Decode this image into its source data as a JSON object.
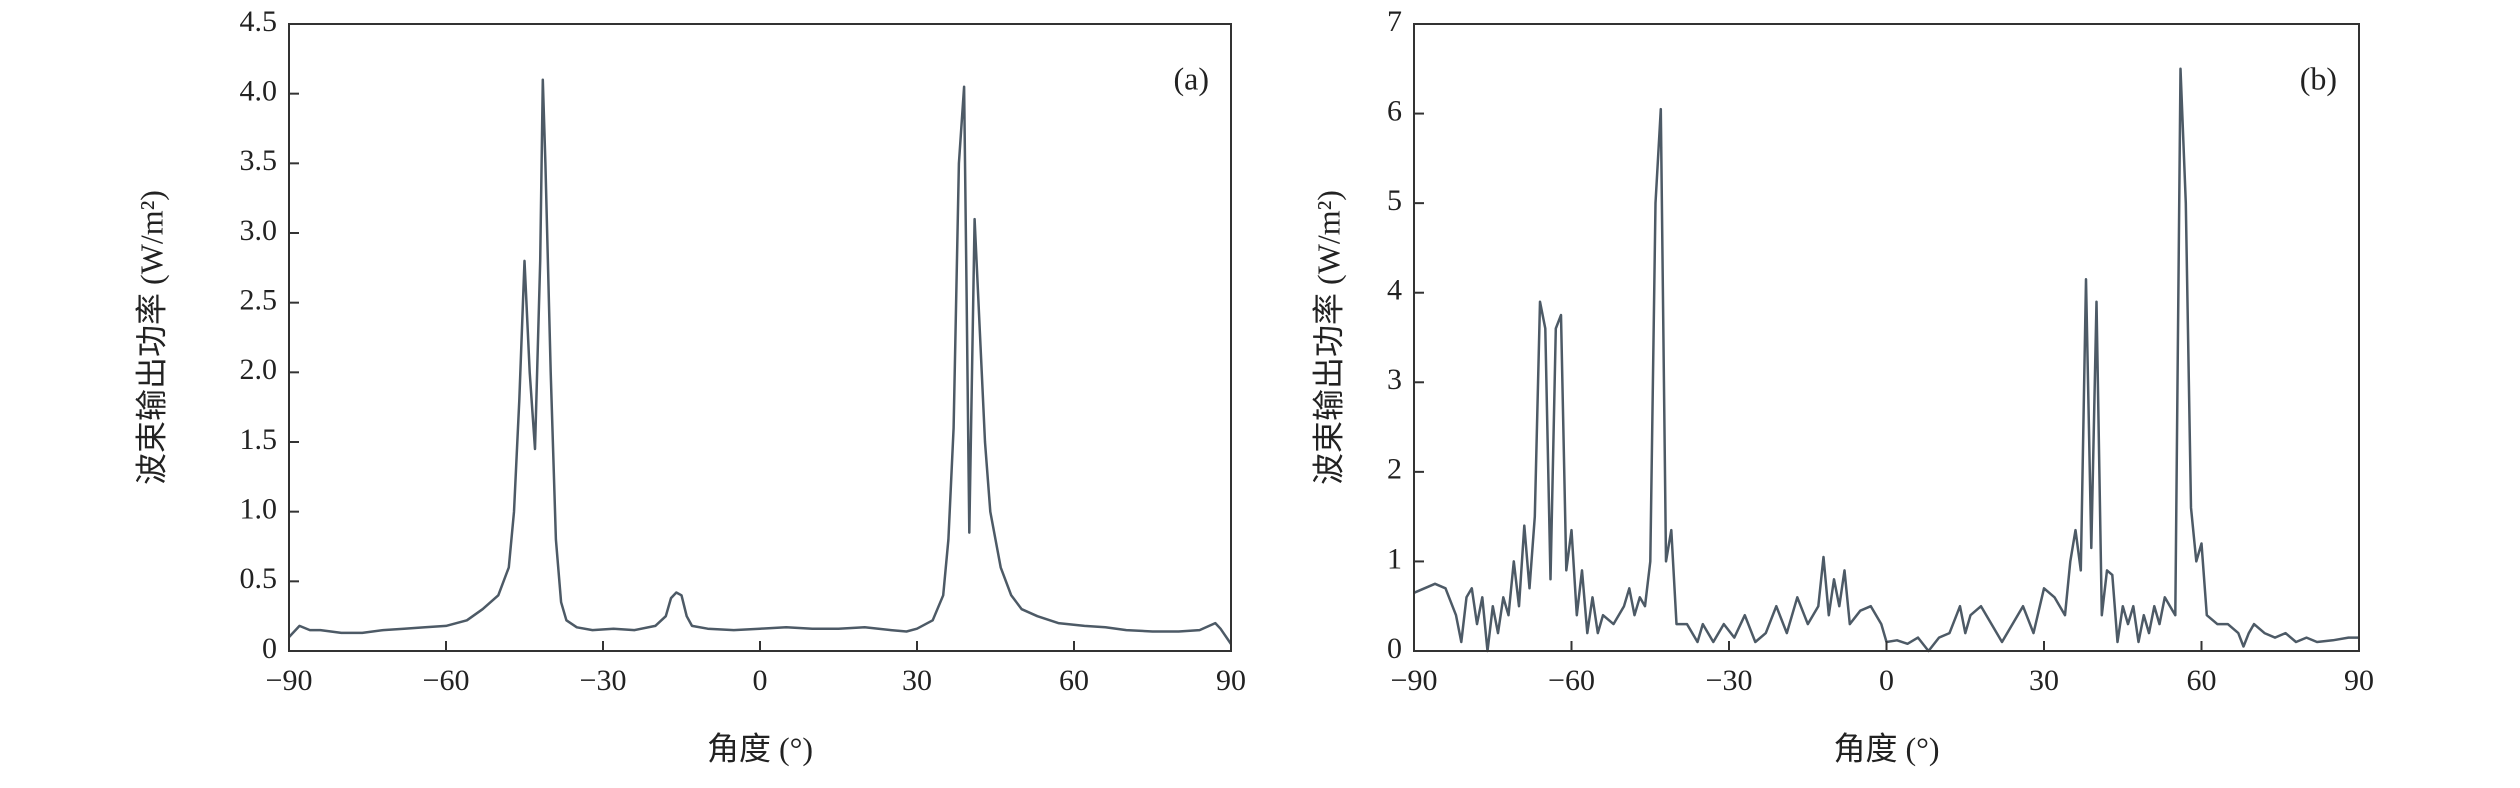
{
  "chart_data": [
    {
      "type": "line",
      "annotation": "(a)",
      "xlabel": "角度 (°)",
      "ylabel": "波束输出功率 (W/m²)",
      "color": "#4d5a66",
      "xlim": [
        -90,
        90
      ],
      "xticks": [
        {
          "value": -90,
          "label": "−90"
        },
        {
          "value": -60,
          "label": "−60"
        },
        {
          "value": -30,
          "label": "−30"
        },
        0,
        30,
        60,
        90
      ],
      "ylim": [
        0,
        4.5
      ],
      "yticks": [
        0,
        0.5,
        {
          "value": 1,
          "label": "1.0"
        },
        1.5,
        {
          "value": 2,
          "label": "2.0"
        },
        2.5,
        {
          "value": 3,
          "label": "3.0"
        },
        3.5,
        {
          "value": 4,
          "label": "4.0"
        },
        4.5
      ],
      "x": [
        -90,
        -88,
        -86,
        -84,
        -82,
        -80,
        -76,
        -72,
        -68,
        -64,
        -60,
        -56,
        -53,
        -50,
        -48,
        -47,
        -46,
        -45,
        -44,
        -43,
        -42,
        -41.5,
        -41,
        -40,
        -39,
        -38,
        -37,
        -35,
        -32,
        -28,
        -24,
        -20,
        -18,
        -17,
        -16,
        -15,
        -14,
        -13,
        -10,
        -5,
        0,
        5,
        10,
        15,
        20,
        25,
        28,
        30,
        33,
        35,
        36,
        37,
        38,
        39,
        39.5,
        40,
        41,
        42,
        43,
        44,
        46,
        48,
        50,
        53,
        57,
        62,
        66,
        70,
        75,
        80,
        84,
        87,
        88,
        90
      ],
      "values": [
        0.1,
        0.18,
        0.15,
        0.15,
        0.14,
        0.13,
        0.13,
        0.15,
        0.16,
        0.17,
        0.18,
        0.22,
        0.3,
        0.4,
        0.6,
        1.0,
        1.8,
        2.8,
        2.0,
        1.45,
        2.8,
        4.1,
        3.5,
        2.0,
        0.8,
        0.35,
        0.22,
        0.17,
        0.15,
        0.16,
        0.15,
        0.18,
        0.25,
        0.38,
        0.42,
        0.4,
        0.25,
        0.18,
        0.16,
        0.15,
        0.16,
        0.17,
        0.16,
        0.16,
        0.17,
        0.15,
        0.14,
        0.16,
        0.22,
        0.4,
        0.8,
        1.6,
        3.5,
        4.05,
        2.5,
        0.85,
        3.1,
        2.3,
        1.5,
        1.0,
        0.6,
        0.4,
        0.3,
        0.25,
        0.2,
        0.18,
        0.17,
        0.15,
        0.14,
        0.14,
        0.15,
        0.2,
        0.16,
        0.05
      ]
    },
    {
      "type": "line",
      "annotation": "(b)",
      "xlabel": "角度 (°)",
      "ylabel": "波束输出功率 (W/m²)",
      "color": "#4d5a66",
      "xlim": [
        -90,
        90
      ],
      "xticks": [
        {
          "value": -90,
          "label": "−90"
        },
        {
          "value": -60,
          "label": "−60"
        },
        {
          "value": -30,
          "label": "−30"
        },
        0,
        30,
        60,
        90
      ],
      "ylim": [
        0,
        7
      ],
      "yticks": [
        0,
        1,
        2,
        3,
        4,
        5,
        6,
        7
      ],
      "x": [
        -90,
        -88,
        -86,
        -84,
        -82,
        -81,
        -80,
        -79,
        -78,
        -77,
        -76,
        -75,
        -74,
        -73,
        -72,
        -71,
        -70,
        -69,
        -68,
        -67,
        -66,
        -65,
        -64,
        -63,
        -62,
        -61,
        -60,
        -59,
        -58,
        -57,
        -56,
        -55,
        -54,
        -52,
        -50,
        -49,
        -48,
        -47,
        -46,
        -45,
        -44,
        -43,
        -42,
        -41,
        -40,
        -38,
        -36,
        -35,
        -33,
        -31,
        -29,
        -27,
        -25,
        -23,
        -21,
        -19,
        -17,
        -15,
        -13,
        -12,
        -11,
        -10,
        -9,
        -8,
        -7,
        -5,
        -3,
        -1,
        0,
        2,
        4,
        6,
        8,
        10,
        12,
        14,
        15,
        16,
        18,
        20,
        22,
        24,
        26,
        28,
        30,
        32,
        34,
        35,
        36,
        37,
        38,
        39,
        40,
        41,
        42,
        43,
        44,
        45,
        46,
        47,
        48,
        49,
        50,
        51,
        52,
        53,
        54,
        55,
        56,
        57,
        58,
        59,
        60,
        61,
        63,
        65,
        67,
        68,
        69,
        70,
        72,
        74,
        76,
        78,
        80,
        82,
        85,
        88,
        90
      ],
      "values": [
        0.65,
        0.7,
        0.75,
        0.7,
        0.4,
        0.1,
        0.6,
        0.7,
        0.3,
        0.6,
        0.0,
        0.5,
        0.2,
        0.6,
        0.4,
        1.0,
        0.5,
        1.4,
        0.7,
        1.5,
        3.9,
        3.6,
        0.8,
        3.6,
        3.75,
        0.9,
        1.35,
        0.4,
        0.9,
        0.2,
        0.6,
        0.2,
        0.4,
        0.3,
        0.5,
        0.7,
        0.4,
        0.6,
        0.5,
        1.0,
        5.0,
        6.05,
        1.0,
        1.35,
        0.3,
        0.3,
        0.1,
        0.3,
        0.1,
        0.3,
        0.15,
        0.4,
        0.1,
        0.2,
        0.5,
        0.2,
        0.6,
        0.3,
        0.5,
        1.05,
        0.4,
        0.8,
        0.5,
        0.9,
        0.3,
        0.45,
        0.5,
        0.3,
        0.1,
        0.12,
        0.08,
        0.15,
        0.0,
        0.15,
        0.2,
        0.5,
        0.2,
        0.4,
        0.5,
        0.3,
        0.1,
        0.3,
        0.5,
        0.2,
        0.7,
        0.6,
        0.4,
        1.0,
        1.35,
        0.9,
        4.15,
        1.15,
        3.9,
        0.4,
        0.9,
        0.85,
        0.1,
        0.5,
        0.3,
        0.5,
        0.1,
        0.4,
        0.2,
        0.5,
        0.3,
        0.6,
        0.5,
        0.4,
        6.5,
        5.0,
        1.6,
        1.0,
        1.2,
        0.4,
        0.3,
        0.3,
        0.2,
        0.05,
        0.2,
        0.3,
        0.2,
        0.15,
        0.2,
        0.1,
        0.15,
        0.1,
        0.12,
        0.15,
        0.15
      ]
    }
  ]
}
